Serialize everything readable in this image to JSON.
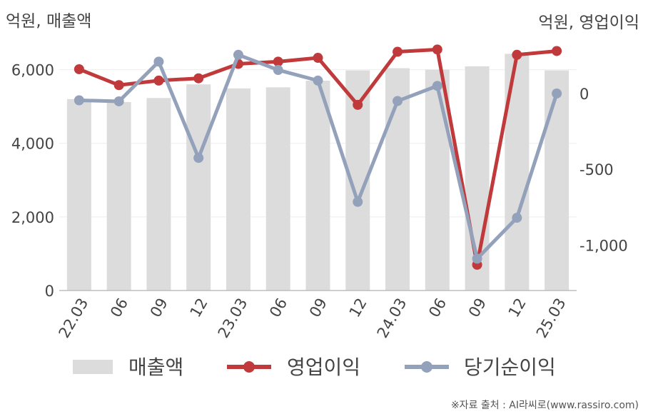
{
  "chart_data": {
    "type": "bar",
    "left_axis_unit": "억원, 매출액",
    "right_axis_unit": "억원, 영업이익",
    "categories": [
      "22.03",
      "06",
      "09",
      "12",
      "23.03",
      "06",
      "09",
      "12",
      "24.03",
      "06",
      "09",
      "12",
      "25.03"
    ],
    "left_axis": {
      "ylim": [
        0,
        7000
      ],
      "ticks": [
        0,
        2000,
        4000,
        6000
      ],
      "tick_labels": [
        "0",
        "2,000",
        "4,000",
        "6,000"
      ]
    },
    "right_axis": {
      "ylim": [
        -1300,
        400
      ],
      "ticks": [
        0,
        -500,
        -1000
      ],
      "tick_labels": [
        "0",
        "-500",
        "-1,000"
      ]
    },
    "series": [
      {
        "name": "매출액",
        "type": "bar",
        "axis": "left",
        "color": "#dcdcdc",
        "values": [
          5200,
          5120,
          5230,
          5600,
          5490,
          5520,
          5700,
          5980,
          6040,
          6000,
          6090,
          6430,
          5980
        ]
      },
      {
        "name": "영업이익",
        "type": "line",
        "axis": "right",
        "color": "#c0393b",
        "values": [
          160,
          55,
          85,
          100,
          195,
          210,
          235,
          -75,
          275,
          290,
          -1130,
          255,
          280
        ]
      },
      {
        "name": "당기순이익",
        "type": "line",
        "axis": "right",
        "color": "#94a1bb",
        "values": [
          -45,
          -52,
          210,
          -425,
          255,
          155,
          85,
          -715,
          -50,
          50,
          -1090,
          -820,
          0
        ]
      }
    ],
    "grid": true,
    "legend_position": "bottom"
  },
  "source_note": "※자료 출처 : AI라씨로(www.rassiro.com)"
}
